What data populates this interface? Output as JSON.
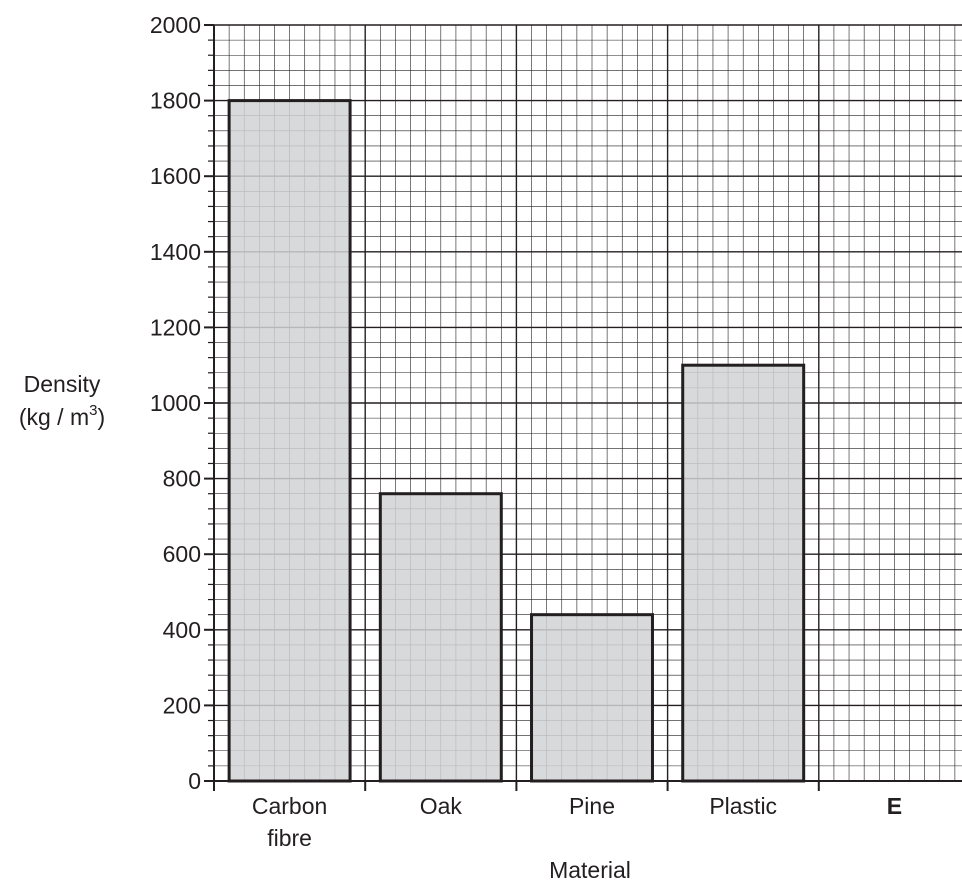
{
  "chart_data": {
    "type": "bar",
    "categories": [
      [
        "Carbon",
        "fibre"
      ],
      [
        "Oak"
      ],
      [
        "Pine"
      ],
      [
        "Plastic"
      ],
      [
        "E"
      ]
    ],
    "bold_categories": [
      "E"
    ],
    "values": [
      1800,
      760,
      440,
      1100,
      null
    ],
    "title": "",
    "xlabel": "Material",
    "ylabel_line1": "Density",
    "ylabel_unit_prefix": "(kg / m",
    "ylabel_unit_exponent": "3",
    "ylabel_unit_suffix": ")",
    "ylim": [
      0,
      2000
    ],
    "yticks": [
      0,
      200,
      400,
      600,
      800,
      1000,
      1200,
      1400,
      1600,
      1800,
      2000
    ],
    "minor_step": 40,
    "grid": true,
    "colors": {
      "bar_fill": "#d1d2d4",
      "bar_stroke": "#231f20",
      "grid_minor": "#231f20",
      "grid_major": "#231f20"
    }
  }
}
